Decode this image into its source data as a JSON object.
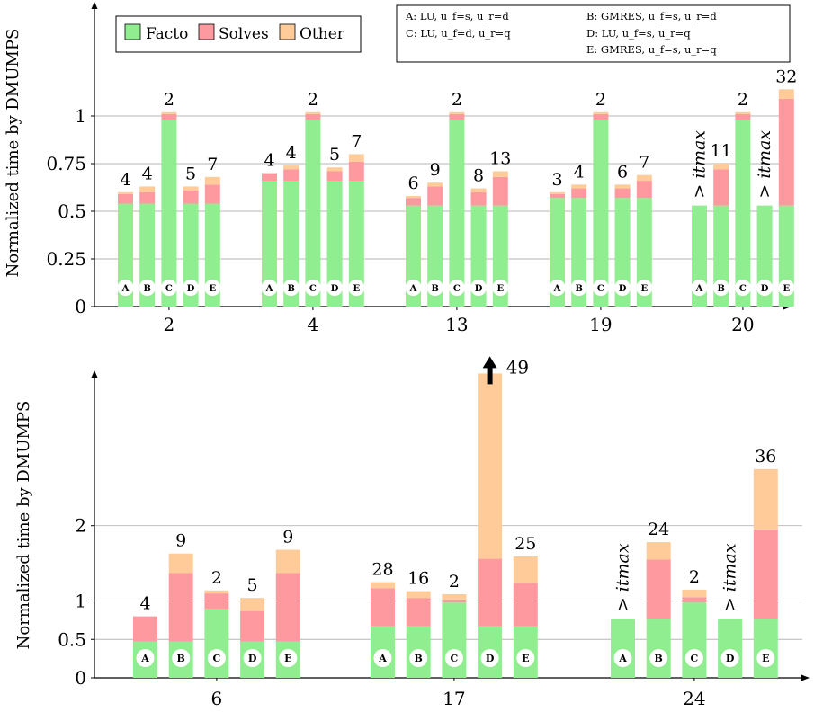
{
  "colors": {
    "facto": "#90EE90",
    "solves": "#FF99A0",
    "other": "#FFCC99",
    "grid": "#b5b5b5",
    "bar_letter_circle": "#ffffff"
  },
  "legend": {
    "facto": "Facto",
    "solves": "Solves",
    "other": "Other"
  },
  "variants": {
    "A": "A: LU, u_f=s, u_r=d",
    "B": "B: GMRES, u_f=s, u_r=d",
    "C": "C: LU, u_f=d, u_r=q",
    "D": "D: LU, u_f=s, u_r=q",
    "E": "E: GMRES, u_f=s, u_r=q"
  },
  "chart_data": [
    {
      "type": "bar",
      "stacked": true,
      "ylabel": "Normalized time by DMUMPS",
      "xlabel": "",
      "yticks": [
        0,
        0.25,
        0.5,
        0.75,
        1
      ],
      "ytick_labels": [
        "0",
        "0.25",
        "0.5",
        "0.75",
        "1"
      ],
      "ylim": [
        0,
        1.55
      ],
      "grid": true,
      "legend_position": "top-left",
      "categories": [
        "2",
        "4",
        "13",
        "19",
        "20"
      ],
      "bar_letters": [
        "A",
        "B",
        "C",
        "D",
        "E"
      ],
      "series_names": [
        "Facto",
        "Solves",
        "Other"
      ],
      "groups": [
        {
          "category": "2",
          "bars": [
            {
              "variant": "A",
              "facto": 0.54,
              "solves": 0.05,
              "other": 0.01,
              "label": "4"
            },
            {
              "variant": "B",
              "facto": 0.54,
              "solves": 0.06,
              "other": 0.03,
              "label": "4"
            },
            {
              "variant": "C",
              "facto": 0.98,
              "solves": 0.03,
              "other": 0.01,
              "label": "2"
            },
            {
              "variant": "D",
              "facto": 0.54,
              "solves": 0.07,
              "other": 0.02,
              "label": "5"
            },
            {
              "variant": "E",
              "facto": 0.54,
              "solves": 0.1,
              "other": 0.04,
              "label": "7"
            }
          ]
        },
        {
          "category": "4",
          "bars": [
            {
              "variant": "A",
              "facto": 0.66,
              "solves": 0.04,
              "other": 0.0,
              "label": "4"
            },
            {
              "variant": "B",
              "facto": 0.66,
              "solves": 0.06,
              "other": 0.02,
              "label": "4"
            },
            {
              "variant": "C",
              "facto": 0.98,
              "solves": 0.03,
              "other": 0.01,
              "label": "2"
            },
            {
              "variant": "D",
              "facto": 0.66,
              "solves": 0.05,
              "other": 0.02,
              "label": "5"
            },
            {
              "variant": "E",
              "facto": 0.66,
              "solves": 0.1,
              "other": 0.04,
              "label": "7"
            }
          ]
        },
        {
          "category": "13",
          "bars": [
            {
              "variant": "A",
              "facto": 0.53,
              "solves": 0.04,
              "other": 0.01,
              "label": "6"
            },
            {
              "variant": "B",
              "facto": 0.53,
              "solves": 0.1,
              "other": 0.02,
              "label": "9"
            },
            {
              "variant": "C",
              "facto": 0.98,
              "solves": 0.03,
              "other": 0.01,
              "label": "2"
            },
            {
              "variant": "D",
              "facto": 0.53,
              "solves": 0.07,
              "other": 0.02,
              "label": "8"
            },
            {
              "variant": "E",
              "facto": 0.53,
              "solves": 0.15,
              "other": 0.03,
              "label": "13"
            }
          ]
        },
        {
          "category": "19",
          "bars": [
            {
              "variant": "A",
              "facto": 0.57,
              "solves": 0.02,
              "other": 0.01,
              "label": "3"
            },
            {
              "variant": "B",
              "facto": 0.57,
              "solves": 0.05,
              "other": 0.02,
              "label": "4"
            },
            {
              "variant": "C",
              "facto": 0.98,
              "solves": 0.03,
              "other": 0.01,
              "label": "2"
            },
            {
              "variant": "D",
              "facto": 0.57,
              "solves": 0.05,
              "other": 0.02,
              "label": "6"
            },
            {
              "variant": "E",
              "facto": 0.57,
              "solves": 0.09,
              "other": 0.03,
              "label": "7"
            }
          ]
        },
        {
          "category": "20",
          "bars": [
            {
              "variant": "A",
              "facto": 0.53,
              "solves": 0.0,
              "other": 0.0,
              "label": "> itmax"
            },
            {
              "variant": "B",
              "facto": 0.53,
              "solves": 0.19,
              "other": 0.03,
              "label": "11"
            },
            {
              "variant": "C",
              "facto": 0.98,
              "solves": 0.03,
              "other": 0.01,
              "label": "2"
            },
            {
              "variant": "D",
              "facto": 0.53,
              "solves": 0.0,
              "other": 0.0,
              "label": "> itmax"
            },
            {
              "variant": "E",
              "facto": 0.53,
              "solves": 0.56,
              "other": 0.05,
              "label": "32"
            }
          ]
        }
      ]
    },
    {
      "type": "bar",
      "stacked": true,
      "ylabel": "Normalized time by DMUMPS",
      "xlabel": "",
      "yticks": [
        0,
        0.5,
        1,
        2
      ],
      "ytick_labels": [
        "0",
        "0.5",
        "1",
        "2"
      ],
      "ylim": [
        0,
        4
      ],
      "grid": true,
      "categories": [
        "6",
        "17",
        "24"
      ],
      "bar_letters": [
        "A",
        "B",
        "C",
        "D",
        "E"
      ],
      "series_names": [
        "Facto",
        "Solves",
        "Other"
      ],
      "clipped_note": "49",
      "groups": [
        {
          "category": "6",
          "bars": [
            {
              "variant": "A",
              "facto": 0.47,
              "solves": 0.33,
              "other": 0.0,
              "label": "4"
            },
            {
              "variant": "B",
              "facto": 0.47,
              "solves": 0.9,
              "other": 0.26,
              "label": "9"
            },
            {
              "variant": "C",
              "facto": 0.9,
              "solves": 0.2,
              "other": 0.04,
              "label": "2"
            },
            {
              "variant": "D",
              "facto": 0.47,
              "solves": 0.4,
              "other": 0.17,
              "label": "5"
            },
            {
              "variant": "E",
              "facto": 0.47,
              "solves": 0.9,
              "other": 0.31,
              "label": "9"
            }
          ]
        },
        {
          "category": "17",
          "bars": [
            {
              "variant": "A",
              "facto": 0.67,
              "solves": 0.5,
              "other": 0.08,
              "label": "28"
            },
            {
              "variant": "B",
              "facto": 0.67,
              "solves": 0.37,
              "other": 0.09,
              "label": "16"
            },
            {
              "variant": "C",
              "facto": 0.98,
              "solves": 0.04,
              "other": 0.07,
              "label": "2"
            },
            {
              "variant": "D",
              "facto": 0.67,
              "solves": 0.89,
              "other": 2.46,
              "label": "",
              "clipped": true
            },
            {
              "variant": "E",
              "facto": 0.67,
              "solves": 0.57,
              "other": 0.35,
              "label": "25"
            }
          ]
        },
        {
          "category": "24",
          "bars": [
            {
              "variant": "A",
              "facto": 0.77,
              "solves": 0.0,
              "other": 0.0,
              "label": "> itmax"
            },
            {
              "variant": "B",
              "facto": 0.77,
              "solves": 0.78,
              "other": 0.23,
              "label": "24"
            },
            {
              "variant": "C",
              "facto": 0.98,
              "solves": 0.07,
              "other": 0.1,
              "label": "2"
            },
            {
              "variant": "D",
              "facto": 0.77,
              "solves": 0.0,
              "other": 0.0,
              "label": "> itmax"
            },
            {
              "variant": "E",
              "facto": 0.77,
              "solves": 1.18,
              "other": 0.8,
              "label": "36"
            }
          ]
        }
      ]
    }
  ]
}
